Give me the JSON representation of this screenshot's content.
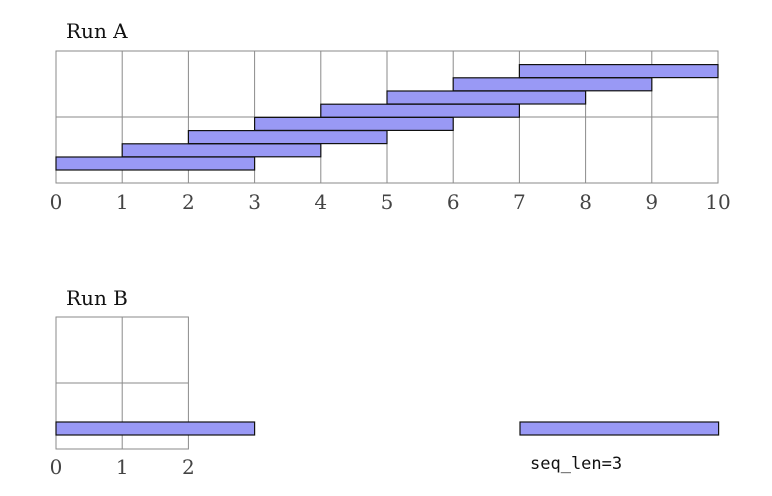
{
  "run_a": {
    "title": "Run A",
    "ticks": [
      "0",
      "1",
      "2",
      "3",
      "4",
      "5",
      "6",
      "7",
      "8",
      "9",
      "10"
    ],
    "segments": [
      {
        "start": 0,
        "end": 3
      },
      {
        "start": 1,
        "end": 4
      },
      {
        "start": 2,
        "end": 5
      },
      {
        "start": 3,
        "end": 6
      },
      {
        "start": 4,
        "end": 7
      },
      {
        "start": 5,
        "end": 8
      },
      {
        "start": 6,
        "end": 9
      },
      {
        "start": 7,
        "end": 10
      }
    ]
  },
  "run_b": {
    "title": "Run B",
    "ticks": [
      "0",
      "1",
      "2"
    ],
    "segments": [
      {
        "start": 0,
        "end": 3
      }
    ]
  },
  "legend": {
    "note": "seq_len=3",
    "bar_length": 3
  },
  "colors": {
    "bar_fill": "#9999f5",
    "bar_stroke": "#111111",
    "grid": "#8a8a8a"
  }
}
